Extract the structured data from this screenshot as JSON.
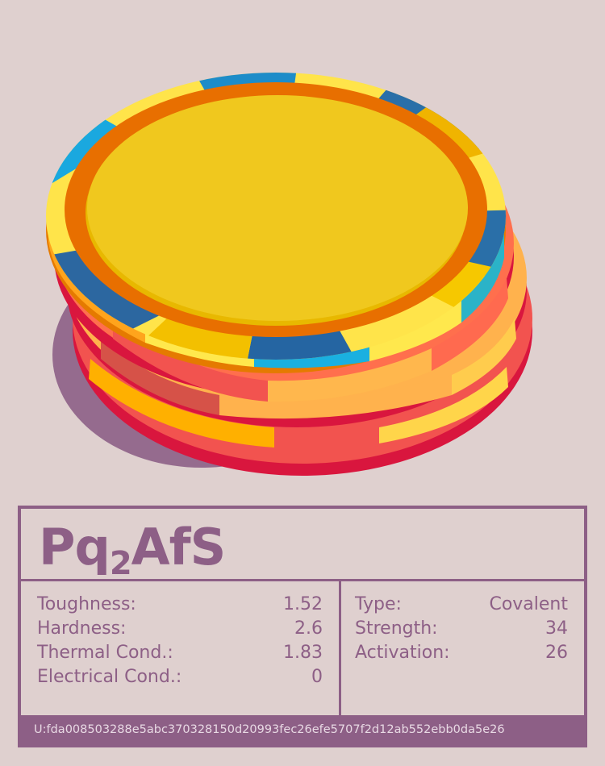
{
  "colors": {
    "background": "#dfd0cf",
    "accent": "#8d5f86",
    "chip_top": "#f0c81e",
    "chip_blue": "#1a8fc8",
    "chip_red": "#f2534f",
    "chip_orange": "#ffb24d"
  },
  "material": {
    "formula_main": "Pq",
    "formula_sub": "2",
    "formula_rest": "AfS"
  },
  "properties_left": [
    {
      "label": "Toughness:",
      "value": "1.52"
    },
    {
      "label": "Hardness:",
      "value": "2.6"
    },
    {
      "label": "Thermal Cond.:",
      "value": "1.83"
    },
    {
      "label": "Electrical Cond.:",
      "value": "0"
    }
  ],
  "properties_right": [
    {
      "label": "Type:",
      "value": "Covalent"
    },
    {
      "label": "Strength:",
      "value": "34"
    },
    {
      "label": "Activation:",
      "value": "26"
    }
  ],
  "footer": {
    "uid": "U:fda008503288e5abc370328150d20993fec26efe5707f2d12ab552ebb0da5e26"
  }
}
